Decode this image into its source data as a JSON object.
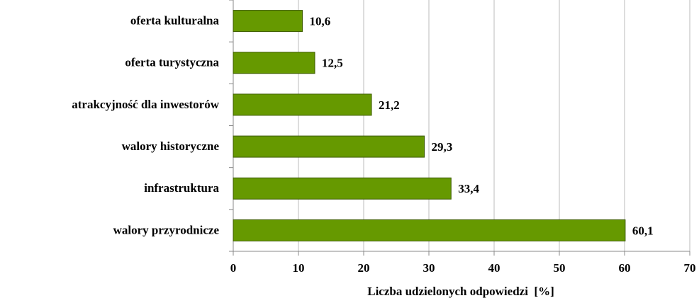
{
  "chart_data": {
    "type": "barh",
    "categories": [
      "oferta kulturalna",
      "oferta turystyczna",
      "atrakcyjność dla inwestorów",
      "walory historyczne",
      "infrastruktura",
      "walory przyrodnicze"
    ],
    "values": [
      10.6,
      12.5,
      21.2,
      29.3,
      33.4,
      60.1
    ],
    "value_labels": [
      "10,6",
      "12,5",
      "21,2",
      "29,3",
      "33,4",
      "60,1"
    ],
    "color": "#669900",
    "xlabel": "Liczba udzielonych odpowiedzi  [%]",
    "xlim": [
      0,
      70
    ],
    "xticks": [
      0,
      10,
      20,
      30,
      40,
      50,
      60,
      70
    ],
    "grid": true
  }
}
